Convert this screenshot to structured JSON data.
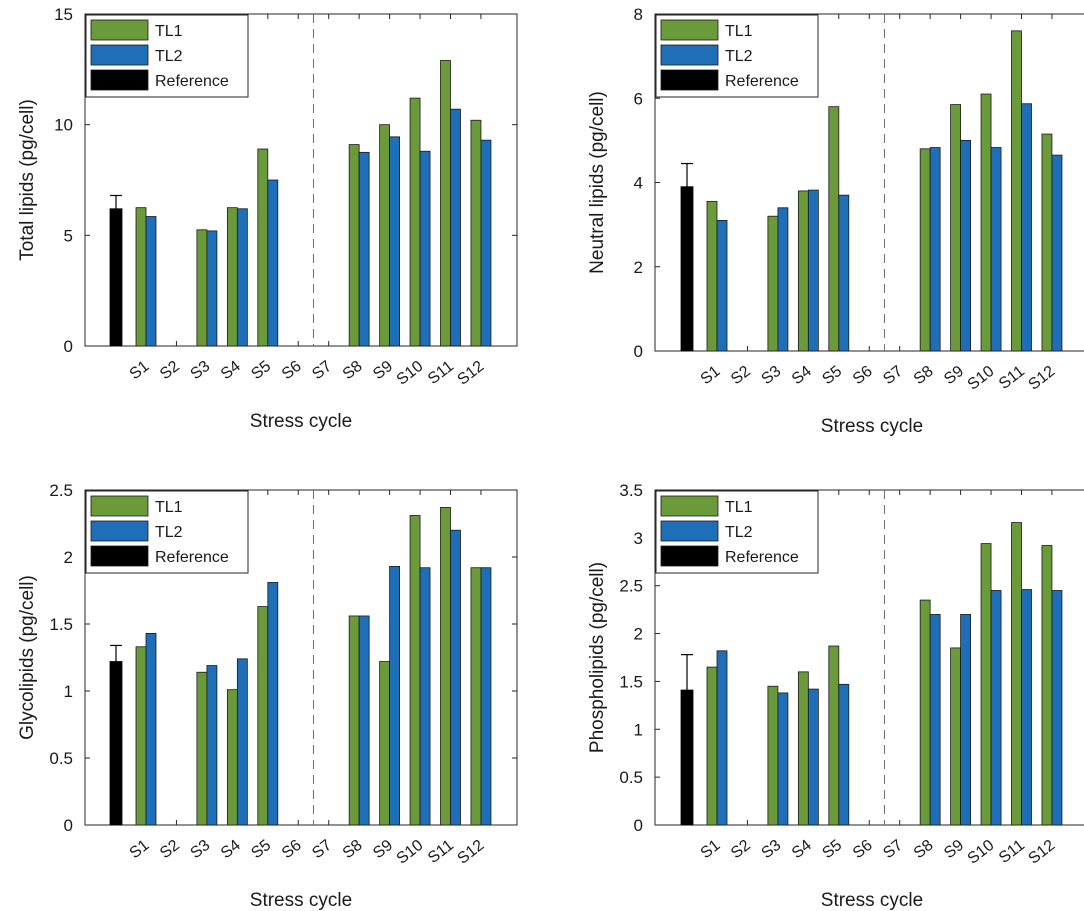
{
  "figure": {
    "background": "#ffffff"
  },
  "colors": {
    "TL1": "#6a9a3a",
    "TL2": "#1f6fb8",
    "Reference": "#000000",
    "axis": "#262626",
    "divider": "#6e6e6e"
  },
  "chart_data": [
    {
      "type": "bar",
      "xlabel": "Stress cycle",
      "ylabel": "Total lipids (pg/cell)",
      "ylim": [
        0,
        15
      ],
      "yticks": [
        "0",
        "5",
        "10",
        "15"
      ],
      "categories": [
        "S1",
        "S2",
        "S3",
        "S4",
        "S5",
        "S6",
        "S7",
        "S8",
        "S9",
        "S10",
        "S11",
        "S12"
      ],
      "divider_between": [
        "S6",
        "S7"
      ],
      "legend": {
        "position": "top-left",
        "entries": [
          "TL1",
          "TL2",
          "Reference"
        ]
      },
      "reference": {
        "name": "Reference",
        "value": 6.2,
        "error": 0.6
      },
      "series": [
        {
          "name": "TL1",
          "values": [
            6.25,
            null,
            5.25,
            6.25,
            8.9,
            null,
            null,
            9.1,
            10.0,
            11.2,
            12.9,
            10.2
          ]
        },
        {
          "name": "TL2",
          "values": [
            5.85,
            null,
            5.2,
            6.2,
            7.5,
            null,
            null,
            8.75,
            9.45,
            8.8,
            10.7,
            9.3
          ]
        }
      ]
    },
    {
      "type": "bar",
      "xlabel": "Stress cycle",
      "ylabel": "Neutral lipids (pg/cell)",
      "ylim": [
        0,
        8
      ],
      "yticks": [
        "0",
        "2",
        "4",
        "6",
        "8"
      ],
      "categories": [
        "S1",
        "S2",
        "S3",
        "S4",
        "S5",
        "S6",
        "S7",
        "S8",
        "S9",
        "S10",
        "S11",
        "S12"
      ],
      "divider_between": [
        "S6",
        "S7"
      ],
      "legend": {
        "position": "top-left",
        "entries": [
          "TL1",
          "TL2",
          "Reference"
        ]
      },
      "reference": {
        "name": "Reference",
        "value": 3.9,
        "error": 0.55
      },
      "series": [
        {
          "name": "TL1",
          "values": [
            3.55,
            null,
            3.2,
            3.8,
            5.8,
            null,
            null,
            4.8,
            5.85,
            6.1,
            7.6,
            5.15
          ]
        },
        {
          "name": "TL2",
          "values": [
            3.1,
            null,
            3.4,
            3.82,
            3.7,
            null,
            null,
            4.83,
            5.0,
            4.83,
            5.87,
            4.65
          ]
        }
      ]
    },
    {
      "type": "bar",
      "xlabel": "Stress cycle",
      "ylabel": "Glycolipids (pg/cell)",
      "ylim": [
        0,
        2.5
      ],
      "yticks": [
        "0",
        "0.5",
        "1",
        "1.5",
        "2",
        "2.5"
      ],
      "categories": [
        "S1",
        "S2",
        "S3",
        "S4",
        "S5",
        "S6",
        "S7",
        "S8",
        "S9",
        "S10",
        "S11",
        "S12"
      ],
      "divider_between": [
        "S6",
        "S7"
      ],
      "legend": {
        "position": "top-left",
        "entries": [
          "TL1",
          "TL2",
          "Reference"
        ]
      },
      "reference": {
        "name": "Reference",
        "value": 1.22,
        "error": 0.12
      },
      "series": [
        {
          "name": "TL1",
          "values": [
            1.33,
            null,
            1.14,
            1.01,
            1.63,
            null,
            null,
            1.56,
            1.22,
            2.31,
            2.37,
            1.92
          ]
        },
        {
          "name": "TL2",
          "values": [
            1.43,
            null,
            1.19,
            1.24,
            1.81,
            null,
            null,
            1.56,
            1.93,
            1.92,
            2.2,
            1.92
          ]
        }
      ]
    },
    {
      "type": "bar",
      "xlabel": "Stress cycle",
      "ylabel": "Phospholipids (pg/cell)",
      "ylim": [
        0,
        3.5
      ],
      "yticks": [
        "0",
        "0.5",
        "1",
        "1.5",
        "2",
        "2.5",
        "3",
        "3.5"
      ],
      "categories": [
        "S1",
        "S2",
        "S3",
        "S4",
        "S5",
        "S6",
        "S7",
        "S8",
        "S9",
        "S10",
        "S11",
        "S12"
      ],
      "divider_between": [
        "S6",
        "S7"
      ],
      "legend": {
        "position": "top-left",
        "entries": [
          "TL1",
          "TL2",
          "Reference"
        ]
      },
      "reference": {
        "name": "Reference",
        "value": 1.41,
        "error": 0.37
      },
      "series": [
        {
          "name": "TL1",
          "values": [
            1.65,
            null,
            1.45,
            1.6,
            1.87,
            null,
            null,
            2.35,
            1.85,
            2.94,
            3.16,
            2.92
          ]
        },
        {
          "name": "TL2",
          "values": [
            1.82,
            null,
            1.38,
            1.42,
            1.47,
            null,
            null,
            2.2,
            2.2,
            2.45,
            2.46,
            2.45
          ]
        }
      ]
    }
  ]
}
